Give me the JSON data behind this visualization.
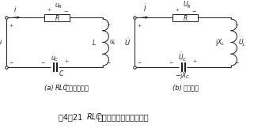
{
  "bg_color": "#ffffff",
  "line_color": "#1a1a1a",
  "fig_width": 3.21,
  "fig_height": 1.72,
  "dpi": 100,
  "caption_cn": "图4－21",
  "caption_en": "  RLC",
  "caption_cn2": "串联交流电路及相量模型",
  "sub_a_en": "(a) RLC",
  "sub_a_cn": "串联交流电路",
  "sub_b_en": "(b) ",
  "sub_b_cn": "相量模型",
  "lw": 0.7
}
